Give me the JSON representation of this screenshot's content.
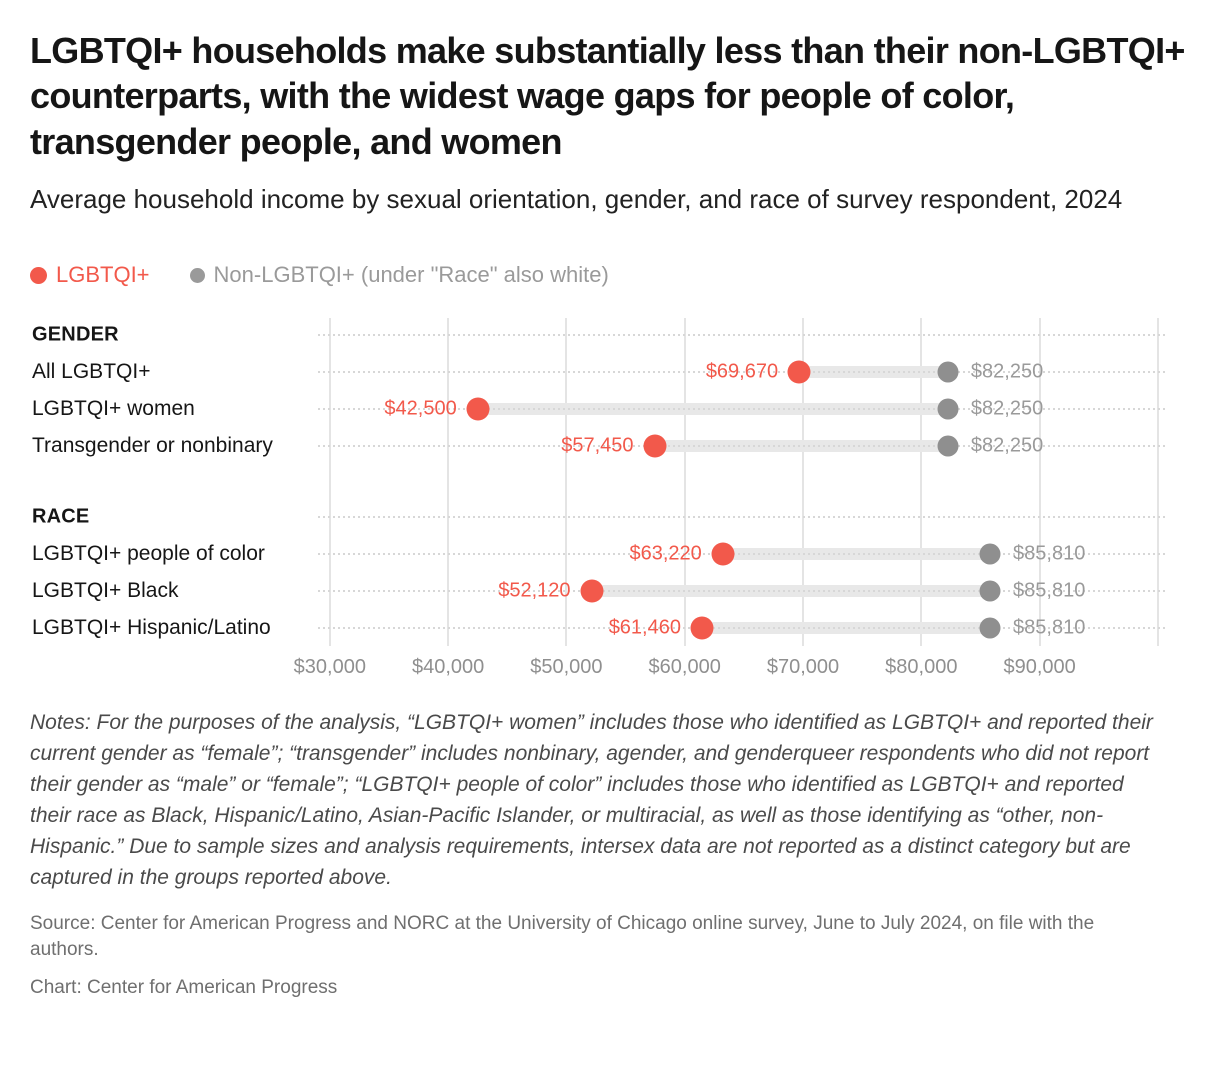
{
  "header": {
    "title": "LGBTQI+ households make substantially less than their non-LGBTQI+ counterparts, with the widest wage gaps for people of color, transgender people, and women",
    "subtitle": "Average household income by sexual orientation, gender, and race of survey respondent, 2024"
  },
  "legend": {
    "items": [
      {
        "label": "LGBTQI+",
        "color": "#F2594B"
      },
      {
        "label": "Non-LGBTQI+ (under \"Race\" also white)",
        "color": "#9A9A9A"
      }
    ]
  },
  "chart_data": {
    "type": "dumbbell",
    "title": "Average household income by sexual orientation, gender, and race of survey respondent, 2024",
    "series": [
      {
        "name": "LGBTQI+",
        "color": "#F2594B"
      },
      {
        "name": "Non-LGBTQI+ (under \"Race\" also white)",
        "color": "#8F8F8F"
      }
    ],
    "axis": {
      "min": 29000,
      "max": 100600,
      "gridlines": [
        30000,
        40000,
        50000,
        60000,
        70000,
        80000,
        90000,
        100000
      ],
      "ticks": [
        {
          "value": 30000,
          "label": "$30,000"
        },
        {
          "value": 40000,
          "label": "$40,000"
        },
        {
          "value": 50000,
          "label": "$50,000"
        },
        {
          "value": 60000,
          "label": "$60,000"
        },
        {
          "value": 70000,
          "label": "$70,000"
        },
        {
          "value": 80000,
          "label": "$80,000"
        },
        {
          "value": 90000,
          "label": "$90,000"
        }
      ]
    },
    "groups": [
      {
        "label": "GENDER",
        "rows": [
          {
            "label": "All LGBTQI+",
            "lgbtqi": 69670,
            "lgbtqi_label": "$69,670",
            "non_lgbtqi": 82250,
            "non_lgbtqi_label": "$82,250"
          },
          {
            "label": "LGBTQI+ women",
            "lgbtqi": 42500,
            "lgbtqi_label": "$42,500",
            "non_lgbtqi": 82250,
            "non_lgbtqi_label": "$82,250"
          },
          {
            "label": "Transgender or nonbinary",
            "lgbtqi": 57450,
            "lgbtqi_label": "$57,450",
            "non_lgbtqi": 82250,
            "non_lgbtqi_label": "$82,250"
          }
        ]
      },
      {
        "label": "RACE",
        "rows": [
          {
            "label": "LGBTQI+ people of color",
            "lgbtqi": 63220,
            "lgbtqi_label": "$63,220",
            "non_lgbtqi": 85810,
            "non_lgbtqi_label": "$85,810"
          },
          {
            "label": "LGBTQI+ Black",
            "lgbtqi": 52120,
            "lgbtqi_label": "$52,120",
            "non_lgbtqi": 85810,
            "non_lgbtqi_label": "$85,810"
          },
          {
            "label": "LGBTQI+ Hispanic/Latino",
            "lgbtqi": 61460,
            "lgbtqi_label": "$61,460",
            "non_lgbtqi": 85810,
            "non_lgbtqi_label": "$85,810"
          }
        ]
      }
    ]
  },
  "footer": {
    "notes": "Notes: For the purposes of the analysis, “LGBTQI+ women” includes those who identified as LGBTQI+ and reported their current gender as “female”; “transgender” includes nonbinary, agender, and genderqueer respondents who did not report their gender as “male” or “female”; “LGBTQI+ people of color” includes those who identified as LGBTQI+ and reported their race as Black, Hispanic/Latino, Asian-Pacific Islander, or multiracial, as well as those identifying as “other, non-Hispanic.” Due to sample sizes and analysis requirements, intersex data are not reported as a distinct category but are captured in the groups reported above.",
    "source": "Source: Center for American Progress and NORC at the University of Chicago online survey, June to July 2024, on file with the authors.",
    "credit": "Chart: Center for American Progress"
  }
}
